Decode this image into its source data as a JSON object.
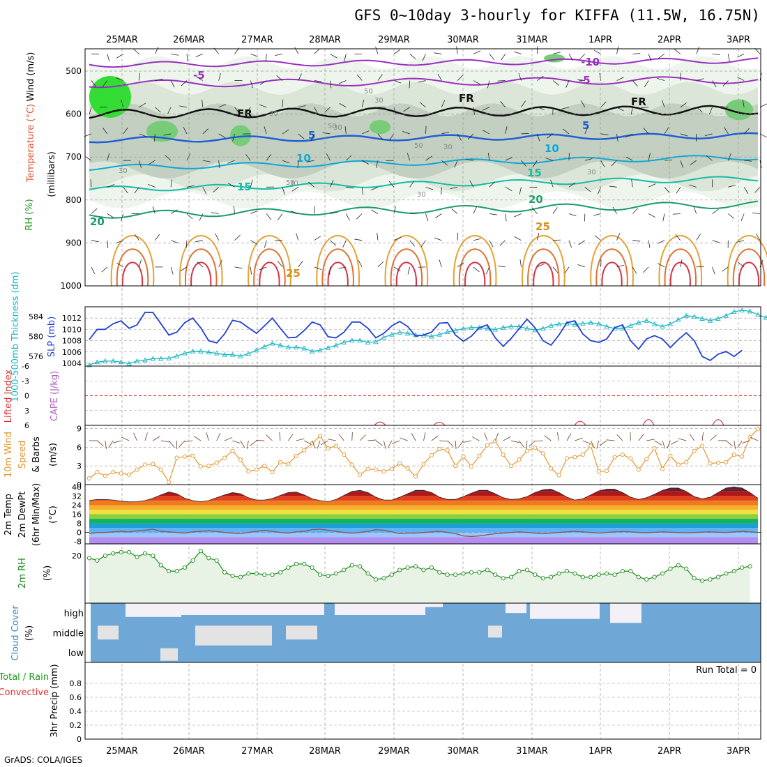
{
  "title": "GFS 0~10day 3-hourly for KIFFA (11.5W, 16.75N)",
  "credit": "GrADS: COLA/IGES",
  "dates": [
    "25MAR",
    "26MAR",
    "27MAR",
    "28MAR",
    "29MAR",
    "30MAR",
    "31MAR",
    "1APR",
    "2APR",
    "3APR"
  ],
  "colors": {
    "grid": "#9a9a9a",
    "slp": "#1f3fd6",
    "thickness": "#1ab5c4",
    "wind": "#e5962e",
    "barb": "#6b3a1e",
    "rh": "#1a8a1a",
    "rh_fill": "#e8f3e6",
    "cloud": "#6fa8d6",
    "cloud_clear": "#f3f0f7",
    "cloud_low_gray": "#e3e3e3",
    "li_zero": "#e03030",
    "li_pts": "#d23a3a",
    "dew": "#8b5a4a"
  },
  "panels": {
    "upper": {
      "ylabel": "(millibars)",
      "side_labels": [
        "Wind (m/s)",
        "Temperature (°C)",
        "RH (%)"
      ],
      "yticks": [
        500,
        600,
        700,
        800,
        900,
        1000
      ],
      "contour_labels": [
        "-10",
        "-5",
        "-5",
        "FR",
        "FR",
        "FR",
        "5",
        "5",
        "10",
        "10",
        "15",
        "15",
        "20",
        "20",
        "25",
        "25",
        "30",
        "30",
        "30",
        "30",
        "30",
        "30",
        "30",
        "30",
        "50",
        "50",
        "50",
        "50"
      ]
    },
    "slp": {
      "side_labels": [
        "1000-500mb Thickness (dm)",
        "SLP (mb)"
      ],
      "yticks_left": [
        576,
        580,
        584
      ],
      "yticks_right": [
        1004,
        1006,
        1008,
        1010,
        1012
      ]
    },
    "cape": {
      "side_labels": [
        "Lifted Index",
        "CAPE (J/kg)"
      ],
      "yticks": [
        "-6",
        "-3",
        "0",
        "3",
        "6"
      ]
    },
    "wind": {
      "side_labels": [
        "10m Wind",
        "Speed",
        "& Barbs",
        "(m/s)"
      ],
      "yticks": [
        0,
        3,
        6,
        9
      ]
    },
    "temp": {
      "side_labels": [
        "2m Temp",
        "2m DewPt",
        "(6hr Min/Max)",
        "(°C)"
      ],
      "yticks": [
        "40",
        "32",
        "24",
        "16",
        "8",
        "0",
        "-8"
      ]
    },
    "rh": {
      "side_labels": [
        "2m RH",
        "(%)"
      ],
      "yticks": [
        20
      ]
    },
    "cloud": {
      "side_labels": [
        "Cloud Cover",
        "(%)"
      ],
      "levels": [
        "high",
        "middle",
        "low"
      ]
    },
    "precip": {
      "side_labels": [
        "Total / Rain",
        "Convective",
        "3hr Precip (mm)"
      ],
      "yticks": [
        "0",
        "0.2",
        "0.4",
        "0.6",
        "0.8"
      ],
      "run_total": "Run Total = 0"
    }
  },
  "chart_data": [
    {
      "type": "line",
      "name": "slp",
      "x_unit": "3-hourly step from 24MAR 12Z",
      "ylabel": "SLP (mb)",
      "ylim": [
        1003.5,
        1014
      ],
      "values": [
        1008.2,
        1010,
        1010,
        1011,
        1011.5,
        1010.2,
        1010.8,
        1013,
        1013,
        1011,
        1009,
        1009.5,
        1011.2,
        1012,
        1010.3,
        1008,
        1007.6,
        1009.2,
        1011.6,
        1011.3,
        1010.3,
        1009.3,
        1010.6,
        1012,
        1010.2,
        1008.5,
        1008.6,
        1009.8,
        1011.3,
        1010.8,
        1008.7,
        1008.5,
        1009.5,
        1011.3,
        1011.3,
        1010.2,
        1008.5,
        1009.3,
        1010.6,
        1011.4,
        1010.5,
        1008.8,
        1009,
        1009.5,
        1011.1,
        1011.2,
        1009,
        1007.9,
        1008.8,
        1010.3,
        1010.8,
        1008.5,
        1007,
        1008.4,
        1010.1,
        1011.8,
        1010.3,
        1008,
        1007.2,
        1009,
        1011.2,
        1011.5,
        1009.2,
        1008,
        1007.7,
        1008.3,
        1010.3,
        1010.8,
        1008,
        1006.5,
        1008.3,
        1008.9,
        1008.3,
        1006.8,
        1008.2,
        1009.4,
        1008,
        1005.2,
        1004.5,
        1005.6,
        1006.1,
        1005.2,
        1006.3
      ]
    },
    {
      "type": "line",
      "name": "thickness",
      "ylabel": "1000-500mb Thickness (dm)",
      "ylim": [
        574,
        586
      ],
      "values": [
        574.2,
        574.8,
        575,
        575,
        574.8,
        574.5,
        575,
        575.2,
        575.5,
        575.5,
        575.6,
        576,
        576.6,
        577,
        577,
        576.8,
        576.6,
        576.3,
        576.3,
        576,
        576.5,
        577.2,
        577.9,
        578.6,
        578.2,
        577.8,
        577.8,
        577.6,
        577,
        577.2,
        577.7,
        578.2,
        578.8,
        579.2,
        579.2,
        578.8,
        578.9,
        579.8,
        580.4,
        580.8,
        580.6,
        580.3,
        580.2,
        580,
        580.4,
        580.9,
        581.2,
        581.6,
        581.8,
        581.8,
        581.6,
        581.4,
        581.8,
        582,
        582,
        581.6,
        581.3,
        581.6,
        582.2,
        582.5,
        582.6,
        582.4,
        582.6,
        582.8,
        582.5,
        582,
        581.6,
        581.6,
        582.2,
        582.8,
        583.2,
        582.5,
        582,
        582.5,
        583.4,
        584.2,
        584,
        583.6,
        583.2,
        583.6,
        584.2,
        585,
        585.3,
        585.1,
        584.4,
        583.8,
        583.6
      ]
    },
    {
      "type": "line",
      "name": "wind_speed",
      "ylabel": "10m Wind Speed (m/s)",
      "ylim": [
        0,
        9
      ],
      "values": [
        1,
        2,
        1.4,
        2,
        1.8,
        1.6,
        2.4,
        3.2,
        3.3,
        2.4,
        0.4,
        4.3,
        4.5,
        4.6,
        2.9,
        3,
        3.5,
        4.3,
        5.4,
        4,
        2.1,
        2.4,
        3,
        2,
        3.6,
        3.3,
        4.6,
        5.5,
        6.6,
        7.8,
        5.8,
        6.2,
        4.8,
        3.2,
        1.6,
        2.5,
        2.4,
        2.1,
        2.5,
        3.4,
        2.6,
        1.3,
        3.3,
        4.7,
        5.7,
        5.5,
        3,
        4.5,
        2.9,
        4.6,
        6.3,
        7,
        4.8,
        3,
        4,
        5.4,
        5.9,
        5,
        2.6,
        1.5,
        4.2,
        4.4,
        4.8,
        6.2,
        2.1,
        2.2,
        4.4,
        4.8,
        4.2,
        2.4,
        4.1,
        5.8,
        2.5,
        4.6,
        3.2,
        3.6,
        5.4,
        6.2,
        3.4,
        3.5,
        3.6,
        4.8,
        4.5,
        7.6,
        8.9
      ]
    },
    {
      "type": "area",
      "name": "temperature_2m",
      "ylabel": "2m Temp (°C)",
      "ylim": [
        -10,
        42
      ],
      "values": [
        28,
        29,
        29,
        28.5,
        27.5,
        26.8,
        27,
        28,
        30,
        33,
        35.5,
        34,
        30,
        28,
        27,
        28,
        30.5,
        33,
        35,
        34,
        30.5,
        28.5,
        28.5,
        29.8,
        32.5,
        35,
        35.5,
        33,
        29.5,
        28,
        27,
        29,
        32.5,
        36,
        37,
        35,
        31,
        28.5,
        28.5,
        31,
        34,
        37,
        37,
        35,
        31,
        29,
        29,
        31.5,
        34.5,
        37,
        37,
        34,
        30.5,
        29,
        29.5,
        31.5,
        35,
        37.5,
        38,
        35,
        31,
        28.5,
        29.5,
        33,
        36.5,
        38,
        38,
        35,
        31,
        29,
        30.5,
        33.5,
        37,
        39,
        39,
        36,
        31.5,
        29.5,
        31,
        35,
        39,
        40,
        39,
        35,
        30
      ]
    },
    {
      "type": "line",
      "name": "dewpoint_2m",
      "ylabel": "2m DewPt (°C)",
      "ylim": [
        -10,
        42
      ],
      "values": [
        -1,
        0,
        0,
        0.5,
        1,
        0.5,
        1.5,
        2,
        3,
        1,
        0.5,
        0,
        -0.5,
        0.5,
        1,
        1.5,
        1,
        0,
        -0.5,
        -1,
        0,
        1,
        2,
        1,
        0,
        -0.5,
        0.5,
        1,
        2.5,
        3,
        2,
        1,
        0,
        -0.5,
        0,
        1,
        2.5,
        2,
        0.5,
        -1,
        -0.5,
        -0.5,
        0,
        0.5,
        1,
        0,
        -1,
        -3,
        -3.5,
        -3,
        -2,
        -1,
        -0.5,
        0,
        0.5,
        0,
        -0.5,
        -1,
        -0.5,
        0,
        0.5,
        1,
        0.5,
        0,
        -0.5,
        0,
        0.5,
        0.8,
        0.5,
        0,
        -0.2,
        0.2,
        0.5,
        0.2,
        0,
        -0.3,
        0,
        0.3,
        0.5,
        0.2,
        0,
        0.5,
        1,
        0.5,
        0
      ]
    },
    {
      "type": "area",
      "name": "rh_2m",
      "ylabel": "2m RH (%)",
      "ylim": [
        0,
        25
      ],
      "values": [
        19,
        18,
        20,
        21,
        21.5,
        21.5,
        19.5,
        21,
        20,
        16,
        13.5,
        13.5,
        15,
        18,
        22,
        19,
        18,
        13,
        11.5,
        11,
        12.5,
        12.5,
        12,
        12,
        13,
        15,
        16.5,
        16.5,
        15,
        12,
        11.5,
        12.5,
        14,
        16,
        15.5,
        12.5,
        10,
        10.5,
        12,
        14,
        15,
        15.5,
        14,
        15,
        13,
        12,
        12,
        12.5,
        13,
        13,
        14,
        12,
        10.5,
        11,
        13.5,
        14,
        12,
        10.5,
        11,
        12.5,
        13.5,
        12.5,
        11,
        11,
        12,
        12.5,
        12,
        13.5,
        13.5,
        11,
        10,
        11,
        12.5,
        14.5,
        16,
        14.5,
        10.5,
        9.5,
        10,
        11,
        12.5,
        13.5,
        15,
        15.5
      ]
    },
    {
      "type": "scatter",
      "name": "lifted_index_points",
      "ylabel": "Lifted Index",
      "ylim": [
        6,
        -6
      ],
      "points": [
        [
          "28MAR-late",
          5.5
        ],
        [
          "29MAR-late",
          5.6
        ],
        [
          "31MAR-late",
          5.2
        ],
        [
          "1APR-late",
          5.0
        ],
        [
          "2APR-late",
          4.3
        ],
        [
          "3APR-early",
          4.5
        ]
      ]
    }
  ]
}
